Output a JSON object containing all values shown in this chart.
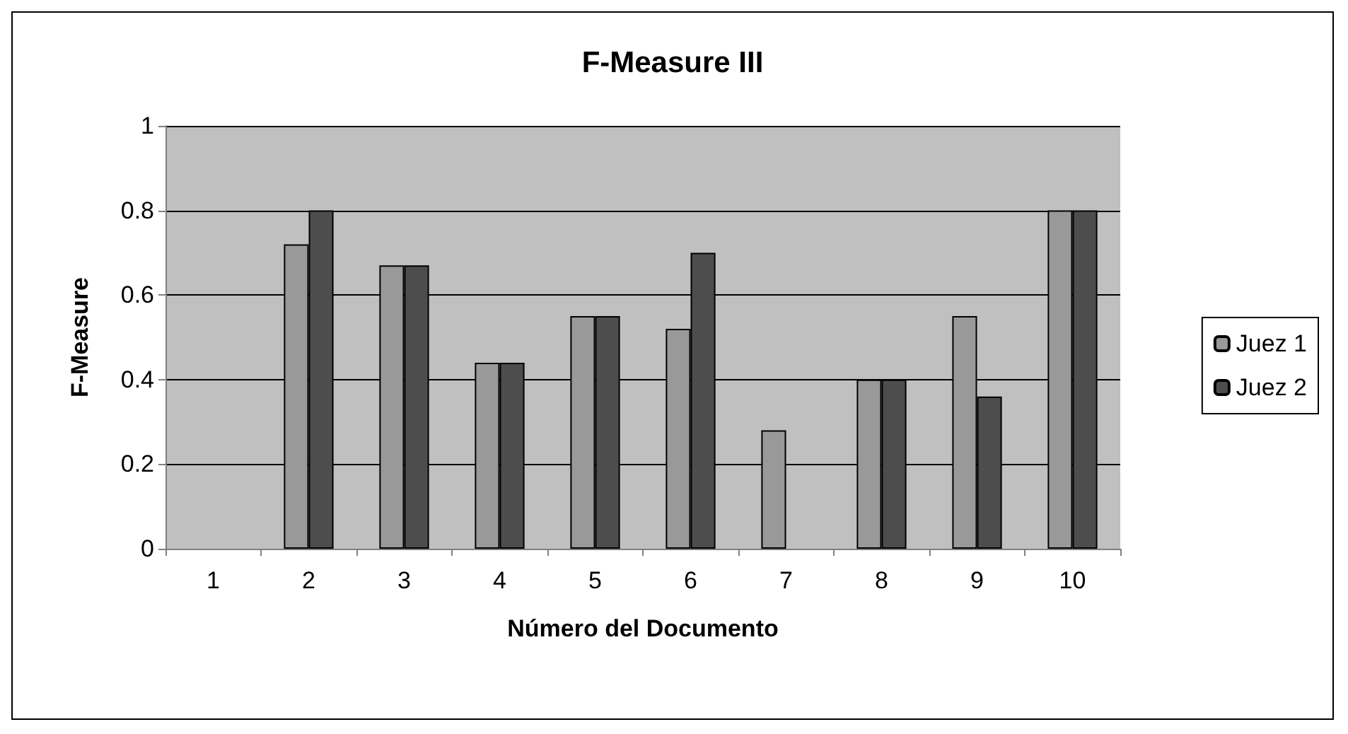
{
  "chart_data": {
    "type": "bar",
    "title": "F-Measure III",
    "xlabel": "Número del Documento",
    "ylabel": "F-Measure",
    "categories": [
      "1",
      "2",
      "3",
      "4",
      "5",
      "6",
      "7",
      "8",
      "9",
      "10"
    ],
    "series": [
      {
        "name": "Juez 1",
        "color": "#999999",
        "values": [
          0,
          0.72,
          0.67,
          0.44,
          0.55,
          0.52,
          0.28,
          0.4,
          0.55,
          0.8
        ]
      },
      {
        "name": "Juez 2",
        "color": "#4d4d4d",
        "values": [
          0,
          0.8,
          0.67,
          0.44,
          0.55,
          0.7,
          0,
          0.4,
          0.36,
          0.8
        ]
      }
    ],
    "ylim": [
      0,
      1
    ],
    "yticks": [
      0,
      0.2,
      0.4,
      0.6,
      0.8,
      1
    ],
    "grid": "y",
    "legend": "right"
  }
}
